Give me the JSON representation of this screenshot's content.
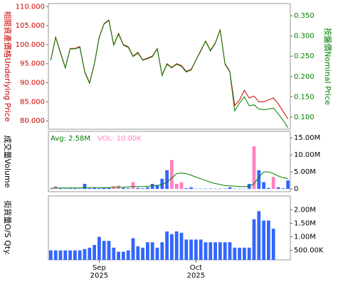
{
  "chart_data": [
    {
      "type": "line",
      "ylabel": "相關資產價格Underlying Price",
      "ylabel_color": "#cc0000",
      "y2label": "按盤價Nominal Price",
      "y2label_color": "#008000",
      "ylim": [
        77.8,
        110.8
      ],
      "yticks": [
        {
          "value": 80,
          "label": "80.000"
        },
        {
          "value": 85,
          "label": "85.000"
        },
        {
          "value": 90,
          "label": "90.000"
        },
        {
          "value": 95,
          "label": "95.000"
        },
        {
          "value": 100,
          "label": "100.000"
        },
        {
          "value": 105,
          "label": "105.000"
        },
        {
          "value": 110,
          "label": "110.000"
        }
      ],
      "y2lim": [
        0.07,
        0.38
      ],
      "y2ticks": [
        {
          "value": 0.1,
          "label": "0.100"
        },
        {
          "value": 0.15,
          "label": "0.150"
        },
        {
          "value": 0.2,
          "label": "0.200"
        },
        {
          "value": 0.25,
          "label": "0.250"
        },
        {
          "value": 0.3,
          "label": "0.300"
        },
        {
          "value": 0.35,
          "label": "0.350"
        }
      ],
      "series": [
        {
          "color": "#cc0000",
          "values": [
            96,
            102,
            98,
            94,
            99,
            99,
            99.5,
            93,
            90,
            95,
            102,
            105.5,
            106.5,
            100,
            103,
            100,
            99.5,
            97,
            98,
            96,
            96.5,
            97,
            99,
            92,
            95,
            94,
            95,
            94.5,
            93,
            93.5,
            96,
            98.5,
            101,
            98.5,
            100.5,
            104,
            95,
            93,
            84,
            85.5,
            88,
            86,
            86.5,
            85,
            85,
            85.5,
            86,
            84.5,
            82.5,
            80.5
          ]
        },
        {
          "color": "#008000",
          "axis": "y2",
          "values": [
            0.24,
            0.296,
            0.258,
            0.221,
            0.268,
            0.268,
            0.272,
            0.211,
            0.183,
            0.23,
            0.296,
            0.329,
            0.338,
            0.277,
            0.305,
            0.277,
            0.272,
            0.249,
            0.258,
            0.24,
            0.244,
            0.249,
            0.268,
            0.202,
            0.23,
            0.221,
            0.23,
            0.225,
            0.211,
            0.216,
            0.24,
            0.263,
            0.287,
            0.263,
            0.282,
            0.315,
            0.23,
            0.211,
            0.115,
            0.135,
            0.15,
            0.128,
            0.13,
            0.12,
            0.118,
            0.12,
            0.122,
            0.108,
            0.092,
            0.074
          ]
        }
      ]
    },
    {
      "type": "bar",
      "ylabel": "成交量Volume",
      "ylim": [
        -800000,
        16900000
      ],
      "yticks": [
        0,
        {
          "value": 5000000,
          "label": "5.00M"
        },
        {
          "value": 10000000,
          "label": "10.00M"
        },
        {
          "value": 15000000,
          "label": "15.00M"
        }
      ],
      "series": [
        {
          "name": "Avg: 2.58M",
          "type": "line",
          "color": "#008000",
          "values": [
            200000,
            300000,
            300000,
            300000,
            300000,
            300000,
            300000,
            400000,
            400000,
            400000,
            400000,
            400000,
            400000,
            500000,
            500000,
            500000,
            600000,
            700000,
            700000,
            700000,
            800000,
            900000,
            1000000,
            1300000,
            2000000,
            3200000,
            4500000,
            4700000,
            4500000,
            4000000,
            3500000,
            3000000,
            2500000,
            2000000,
            1600000,
            1300000,
            1000000,
            900000,
            800000,
            700000,
            700000,
            800000,
            1500000,
            3500000,
            5000000,
            5000000,
            4500000,
            3800000,
            3300000,
            3000000
          ]
        },
        {
          "name": "VOL: 10.00K",
          "type": "bar",
          "color": "#ff80c0",
          "values": [
            100000,
            800000,
            200000,
            100000,
            150000,
            200000,
            100000,
            1500000,
            200000,
            300000,
            200000,
            300000,
            400000,
            800000,
            1000000,
            300000,
            200000,
            2000000,
            300000,
            200000,
            500000,
            1500000,
            1200000,
            3000000,
            5500000,
            8500000,
            1500000,
            2000000,
            200000,
            500000,
            100000,
            100000,
            100000,
            100000,
            100000,
            100000,
            100000,
            500000,
            100000,
            100000,
            100000,
            1500000,
            12500000,
            5500000,
            2000000,
            300000,
            3500000,
            500000,
            200000,
            2500000
          ],
          "colors": [
            "#3366ff",
            "#ff80c0",
            "#3366ff",
            "#3366ff",
            "#3366ff",
            "#3366ff",
            "#3366ff",
            "#3366ff",
            "#3366ff",
            "#3366ff",
            "#3366ff",
            "#3366ff",
            "#3366ff",
            "#ff80c0",
            "#ff80c0",
            "#3366ff",
            "#3366ff",
            "#ff80c0",
            "#3366ff",
            "#3366ff",
            "#3366ff",
            "#3366ff",
            "#3366ff",
            "#3366ff",
            "#3366ff",
            "#ff80c0",
            "#ff80c0",
            "#ff80c0",
            "#3366ff",
            "#3366ff",
            "#3366ff",
            "#3366ff",
            "#3366ff",
            "#3366ff",
            "#3366ff",
            "#3366ff",
            "#3366ff",
            "#3366ff",
            "#3366ff",
            "#3366ff",
            "#3366ff",
            "#3366ff",
            "#ff80c0",
            "#3366ff",
            "#3366ff",
            "#3366ff",
            "#ff80c0",
            "#3366ff",
            "#3366ff",
            "#3366ff"
          ]
        }
      ]
    },
    {
      "type": "bar",
      "ylabel": "街貨量O/S Qty.",
      "ylim": [
        150000,
        2510000
      ],
      "yticks": [
        {
          "value": 500000,
          "label": "500.00K"
        },
        {
          "value": 1000000,
          "label": "1.00M"
        },
        {
          "value": 1500000,
          "label": "1.50M"
        },
        {
          "value": 2000000,
          "label": "2.00M"
        }
      ],
      "categories": [
        null,
        null,
        null,
        null,
        null,
        null,
        null,
        null,
        null,
        null,
        "Sep\n2025",
        null,
        null,
        null,
        null,
        null,
        null,
        null,
        null,
        null,
        null,
        null,
        null,
        null,
        null,
        null,
        null,
        null,
        null,
        null,
        "Oct\n2025",
        null,
        null,
        null,
        null,
        null,
        null,
        null,
        null,
        null,
        null,
        null,
        null,
        null,
        null,
        null,
        null,
        null,
        null,
        null
      ],
      "series": [
        {
          "type": "bar",
          "color": "#3366ff",
          "values": [
            500000,
            500000,
            500000,
            500000,
            500000,
            500000,
            500000,
            550000,
            600000,
            700000,
            1000000,
            850000,
            850000,
            600000,
            450000,
            450000,
            500000,
            950000,
            650000,
            600000,
            800000,
            800000,
            600000,
            800000,
            1200000,
            1100000,
            1200000,
            1150000,
            900000,
            900000,
            900000,
            900000,
            800000,
            800000,
            800000,
            800000,
            800000,
            800000,
            600000,
            600000,
            600000,
            600000,
            1650000,
            1950000,
            1600000,
            1600000,
            1300000,
            null,
            null,
            null
          ]
        }
      ]
    }
  ]
}
